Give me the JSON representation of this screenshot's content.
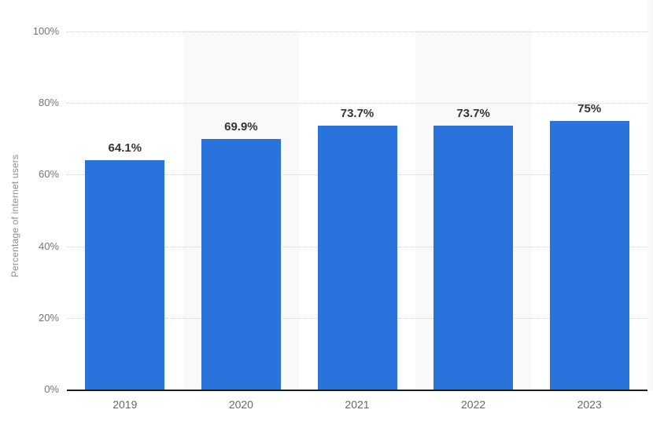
{
  "chart_data": {
    "type": "bar",
    "categories": [
      "2019",
      "2020",
      "2021",
      "2022",
      "2023"
    ],
    "values": [
      64.1,
      69.9,
      73.7,
      73.7,
      75
    ],
    "value_labels": [
      "64.1%",
      "69.9%",
      "73.7%",
      "73.7%",
      "75%"
    ],
    "title": "",
    "xlabel": "",
    "ylabel": "Percentage of internet users",
    "ylim": [
      0,
      100
    ],
    "y_ticks": [
      "0%",
      "20%",
      "40%",
      "60%",
      "80%",
      "100%"
    ],
    "y_tick_step": 20,
    "grid": "horizontal-dotted",
    "legend": "none",
    "bar_color": "#2a73dd",
    "band_color": "#f9f9f9",
    "axis_line_color": "#1f1f1f",
    "gridline_color": "#d2d2d2",
    "value_label_color": "#333333",
    "tick_label_color": "#757575",
    "alternating_column_bands": true
  }
}
